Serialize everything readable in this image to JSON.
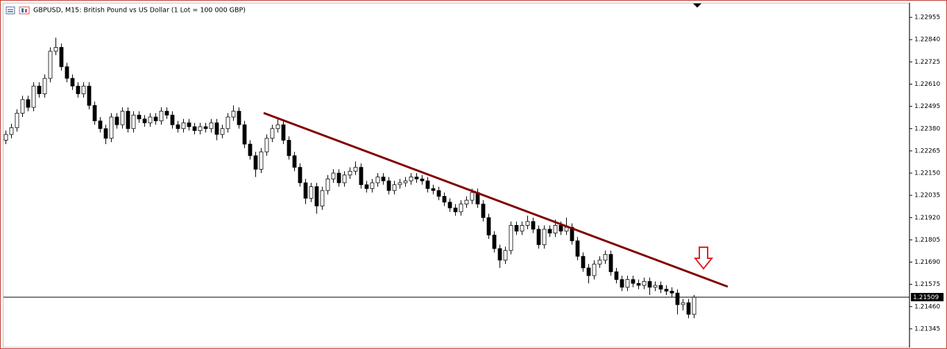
{
  "chart_data": {
    "type": "candlestick",
    "title": "GBPUSD, M15:  British Pound vs US Dollar (1 Lot = 100 000 GBP)",
    "ylim": [
      1.21248,
      1.23027
    ],
    "yticks": [
      1.22955,
      {
        "value": 1.2284,
        "label": "1.22840"
      },
      1.22725,
      {
        "value": 1.2261,
        "label": "1.22610"
      },
      1.22495,
      {
        "value": 1.2238,
        "label": "1.22380"
      },
      1.22265,
      {
        "value": 1.2215,
        "label": "1.22150"
      },
      1.22035,
      {
        "value": 1.2192,
        "label": "1.21920"
      },
      1.21805,
      {
        "value": 1.2169,
        "label": "1.21690"
      },
      1.21575,
      {
        "value": 1.2146,
        "label": "1.21460"
      },
      1.21345
    ],
    "up_color": "#ffffff",
    "down_color": "#000000",
    "wick_color": "#000000",
    "open": [
      1.2232,
      1.2235,
      1.22385,
      1.2246,
      1.2253,
      1.2249,
      1.226,
      1.2256,
      1.2264,
      1.2278,
      1.228,
      1.227,
      1.2264,
      1.226,
      1.2256,
      1.226,
      1.225,
      1.2242,
      1.2238,
      1.2233,
      1.2244,
      1.224,
      1.2247,
      1.2238,
      1.2245,
      1.2243,
      1.2241,
      1.2244,
      1.2242,
      1.2247,
      1.2245,
      1.224,
      1.2238,
      1.2241,
      1.2239,
      1.2237,
      1.2239,
      1.2238,
      1.2241,
      1.2235,
      1.2238,
      1.2244,
      1.2247,
      1.224,
      1.223,
      1.2224,
      1.2217,
      1.2226,
      1.2233,
      1.2238,
      1.224,
      1.2232,
      1.2224,
      1.2218,
      1.221,
      1.2202,
      1.2208,
      1.2198,
      1.2206,
      1.2212,
      1.2215,
      1.221,
      1.2214,
      1.2216,
      1.2218,
      1.2209,
      1.2207,
      1.221,
      1.2213,
      1.2211,
      1.2206,
      1.2209,
      1.221,
      1.2211,
      1.2213,
      1.2212,
      1.2211,
      1.2207,
      1.2206,
      1.2203,
      1.22,
      1.2197,
      1.2195,
      1.2199,
      1.2201,
      1.2205,
      1.2199,
      1.2192,
      1.2183,
      1.2176,
      1.217,
      1.2175,
      1.2188,
      1.2185,
      1.2188,
      1.219,
      1.2186,
      1.2178,
      1.2186,
      1.2184,
      1.2188,
      1.2185,
      1.2187,
      1.218,
      1.2172,
      1.2166,
      1.2162,
      1.2168,
      1.217,
      1.2173,
      1.2164,
      1.216,
      1.2156,
      1.216,
      1.2158,
      1.2157,
      1.2159,
      1.2156,
      1.2157,
      1.2155,
      1.2154,
      1.2153,
      1.2147,
      1.2148,
      1.2142
    ],
    "high": [
      1.2237,
      1.22405,
      1.2248,
      1.2255,
      1.2255,
      1.2262,
      1.2262,
      1.2266,
      1.228,
      1.2285,
      1.2282,
      1.2272,
      1.2266,
      1.2262,
      1.2262,
      1.2262,
      1.2252,
      1.2244,
      1.224,
      1.2246,
      1.2246,
      1.2249,
      1.2249,
      1.2247,
      1.2247,
      1.2245,
      1.2246,
      1.2246,
      1.2249,
      1.2249,
      1.2247,
      1.2242,
      1.2243,
      1.2243,
      1.2241,
      1.2241,
      1.2241,
      1.2243,
      1.2243,
      1.224,
      1.2246,
      1.225,
      1.2249,
      1.2242,
      1.2232,
      1.2226,
      1.2228,
      1.2235,
      1.224,
      1.2243,
      1.2242,
      1.2234,
      1.2226,
      1.222,
      1.2212,
      1.221,
      1.221,
      1.2208,
      1.2214,
      1.2217,
      1.2217,
      1.2216,
      1.2218,
      1.2221,
      1.222,
      1.2211,
      1.2212,
      1.2215,
      1.2215,
      1.2213,
      1.2211,
      1.2212,
      1.2213,
      1.2215,
      1.2215,
      1.2214,
      1.2213,
      1.2209,
      1.2208,
      1.2205,
      1.2202,
      1.2199,
      1.2201,
      1.2203,
      1.2207,
      1.2207,
      1.2201,
      1.2194,
      1.2185,
      1.2178,
      1.2177,
      1.219,
      1.219,
      1.219,
      1.2193,
      1.2192,
      1.2188,
      1.2188,
      1.2188,
      1.2191,
      1.219,
      1.2192,
      1.2189,
      1.2182,
      1.2174,
      1.2168,
      1.217,
      1.2172,
      1.2175,
      1.2175,
      1.2166,
      1.2162,
      1.2162,
      1.2162,
      1.216,
      1.2161,
      1.2161,
      1.2159,
      1.2159,
      1.2157,
      1.2156,
      1.2155,
      1.215,
      1.215,
      1.2152
    ],
    "low": [
      1.223,
      1.2233,
      1.22365,
      1.2244,
      1.2247,
      1.2247,
      1.2254,
      1.2254,
      1.2262,
      1.2276,
      1.2268,
      1.2262,
      1.2258,
      1.2254,
      1.2254,
      1.2248,
      1.224,
      1.2236,
      1.223,
      1.2231,
      1.2238,
      1.2238,
      1.2236,
      1.2236,
      1.2241,
      1.2239,
      1.2239,
      1.224,
      1.224,
      1.2243,
      1.2238,
      1.2236,
      1.2236,
      1.2237,
      1.2235,
      1.2235,
      1.2236,
      1.2236,
      1.2232,
      1.2233,
      1.2236,
      1.2242,
      1.2238,
      1.2228,
      1.2222,
      1.2213,
      1.2215,
      1.2224,
      1.2231,
      1.2236,
      1.223,
      1.2222,
      1.2216,
      1.2208,
      1.2199,
      1.22,
      1.2194,
      1.2196,
      1.2204,
      1.221,
      1.2208,
      1.2208,
      1.2212,
      1.2214,
      1.2207,
      1.2205,
      1.2205,
      1.2208,
      1.2209,
      1.2204,
      1.2204,
      1.2207,
      1.2208,
      1.2209,
      1.221,
      1.2209,
      1.2205,
      1.2204,
      1.2201,
      1.2198,
      1.2195,
      1.2193,
      1.2193,
      1.2197,
      1.2199,
      1.2197,
      1.219,
      1.2181,
      1.2174,
      1.2166,
      1.2168,
      1.2173,
      1.2183,
      1.2183,
      1.2186,
      1.2184,
      1.2176,
      1.2176,
      1.2182,
      1.2182,
      1.2183,
      1.2183,
      1.2178,
      1.217,
      1.2164,
      1.2158,
      1.216,
      1.2166,
      1.2168,
      1.2162,
      1.2158,
      1.2154,
      1.2154,
      1.2156,
      1.2155,
      1.2155,
      1.2152,
      1.2154,
      1.2153,
      1.2152,
      1.2151,
      1.2142,
      1.2144,
      1.214,
      1.214
    ],
    "close": [
      1.2235,
      1.22385,
      1.2246,
      1.2253,
      1.2249,
      1.226,
      1.2256,
      1.2264,
      1.2278,
      1.228,
      1.227,
      1.2264,
      1.226,
      1.2256,
      1.226,
      1.225,
      1.2242,
      1.2238,
      1.2233,
      1.2244,
      1.224,
      1.2247,
      1.2238,
      1.2245,
      1.2243,
      1.2241,
      1.2244,
      1.2242,
      1.2247,
      1.2245,
      1.224,
      1.2238,
      1.2241,
      1.2239,
      1.2237,
      1.2239,
      1.2238,
      1.2241,
      1.2235,
      1.2238,
      1.2244,
      1.2247,
      1.224,
      1.223,
      1.2224,
      1.2217,
      1.2226,
      1.2233,
      1.2238,
      1.224,
      1.2232,
      1.2224,
      1.2218,
      1.221,
      1.2202,
      1.2208,
      1.2198,
      1.2206,
      1.2212,
      1.2215,
      1.221,
      1.2214,
      1.2216,
      1.2218,
      1.2209,
      1.2207,
      1.221,
      1.2213,
      1.2211,
      1.2206,
      1.2209,
      1.221,
      1.2211,
      1.2213,
      1.2212,
      1.2211,
      1.2207,
      1.2206,
      1.2203,
      1.22,
      1.2197,
      1.2195,
      1.2199,
      1.2201,
      1.2205,
      1.2199,
      1.2192,
      1.2183,
      1.2176,
      1.217,
      1.2175,
      1.2188,
      1.2185,
      1.2188,
      1.219,
      1.2186,
      1.2178,
      1.2186,
      1.2184,
      1.2188,
      1.2185,
      1.2187,
      1.218,
      1.2172,
      1.2166,
      1.2162,
      1.2168,
      1.217,
      1.2173,
      1.2164,
      1.216,
      1.2156,
      1.216,
      1.2158,
      1.2157,
      1.2159,
      1.2156,
      1.2157,
      1.2155,
      1.2154,
      1.2153,
      1.2147,
      1.2148,
      1.2142,
      1.21509
    ],
    "last_price": 1.21509,
    "trendline": {
      "values": [
        1.22461,
        1.21563
      ],
      "color": "#800000"
    },
    "arrow_color": "#e02020"
  }
}
